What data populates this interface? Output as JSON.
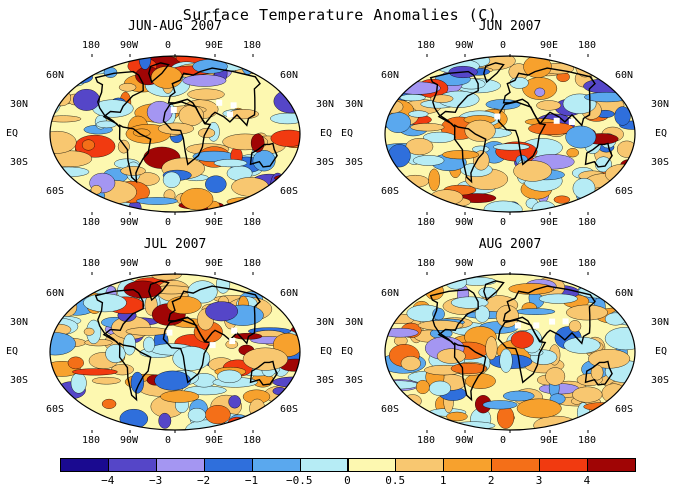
{
  "title": "Surface Temperature Anomalies (C)",
  "panels": [
    {
      "title": "JUN-AUG 2007"
    },
    {
      "title": "JUN 2007"
    },
    {
      "title": "JUL 2007"
    },
    {
      "title": "AUG 2007"
    }
  ],
  "lon_labels": [
    "180",
    "90W",
    "0",
    "90E",
    "180"
  ],
  "lat_labels": [
    "60N",
    "30N",
    "EQ",
    "30S",
    "60S"
  ],
  "colorbar": {
    "colors": [
      "#1a0a90",
      "#5546c8",
      "#a496f2",
      "#2f6fdc",
      "#5aa8ee",
      "#b6ecf5",
      "#fdf8b0",
      "#f8c770",
      "#f7a12d",
      "#f46f18",
      "#f13a10",
      "#a00505"
    ],
    "labels": [
      "−4",
      "−3",
      "−2",
      "−1",
      "−0.5",
      "0",
      "0.5",
      "1",
      "2",
      "3",
      "4"
    ]
  }
}
